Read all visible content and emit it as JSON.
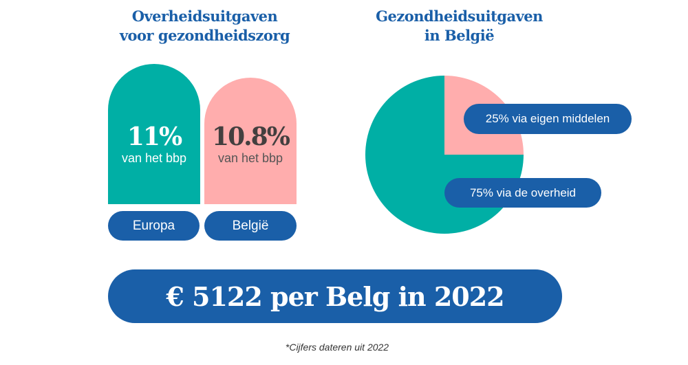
{
  "colors": {
    "teal": "#00afa5",
    "pink": "#ffadad",
    "blue": "#1a5fa8"
  },
  "left_title": [
    "Overheidsuitgaven",
    "voor gezondheidszorg"
  ],
  "right_title": [
    "Gezondheidsuitgaven",
    "in België"
  ],
  "chart_data": [
    {
      "type": "bar",
      "categories": [
        "Europa",
        "België"
      ],
      "values": [
        11,
        10.8
      ],
      "value_labels": [
        "11%",
        "10.8%"
      ],
      "unit": "van het bbp"
    },
    {
      "type": "pie",
      "slices": [
        {
          "label": "25% via eigen middelen",
          "value": 25
        },
        {
          "label": "75% via de overheid",
          "value": 75
        }
      ]
    }
  ],
  "banner": "€ 5122 per Belg in 2022",
  "footnote": "*Cijfers dateren uit 2022"
}
